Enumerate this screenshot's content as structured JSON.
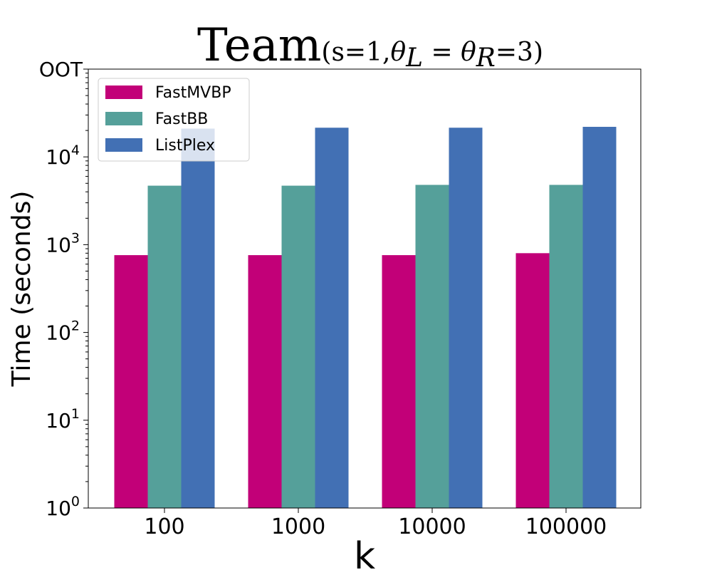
{
  "chart_data": {
    "type": "bar",
    "title": "Team",
    "title_params": {
      "open": "(s=1,",
      "theta": "θ",
      "sub_l": "L",
      "eq": " = ",
      "sub_r": "R",
      "close": "=3)"
    },
    "xlabel": "k",
    "ylabel": "Time (seconds)",
    "y_scale": "log",
    "ylim": [
      1,
      100000
    ],
    "y_ticks": [
      {
        "value": 1,
        "base": "10",
        "exp": "0"
      },
      {
        "value": 10,
        "base": "10",
        "exp": "1"
      },
      {
        "value": 100,
        "base": "10",
        "exp": "2"
      },
      {
        "value": 1000,
        "base": "10",
        "exp": "3"
      },
      {
        "value": 10000,
        "base": "10",
        "exp": "4"
      }
    ],
    "y_top_label": "OOT",
    "categories": [
      "100",
      "1000",
      "10000",
      "100000"
    ],
    "series": [
      {
        "name": "FastMVBP",
        "color": "#c20078",
        "values": [
          760,
          760,
          760,
          800
        ]
      },
      {
        "name": "FastBB",
        "color": "#55a09a",
        "values": [
          4700,
          4700,
          4800,
          4800
        ]
      },
      {
        "name": "ListPlex",
        "color": "#4270b4",
        "values": [
          21000,
          21500,
          21500,
          22000
        ]
      }
    ],
    "legend_position": "top-left",
    "grid": false
  }
}
